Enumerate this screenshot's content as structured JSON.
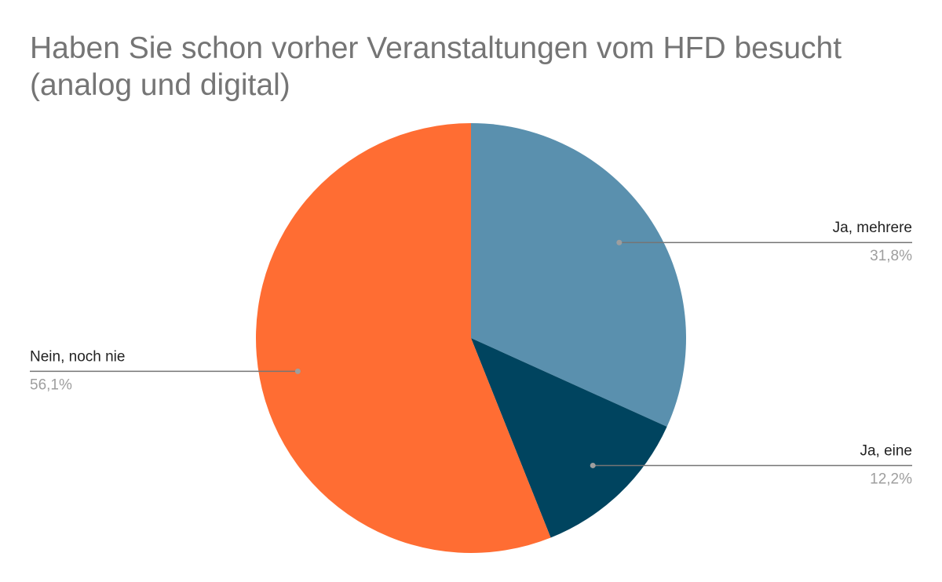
{
  "chart_data": {
    "type": "pie",
    "title": "Haben Sie schon vorher Veranstaltungen vom HFD besucht (analog und digital)",
    "categories": [
      "Ja, mehrere",
      "Ja, eine",
      "Nein, noch nie"
    ],
    "values": [
      31.8,
      12.2,
      56.1
    ],
    "value_labels": [
      "31,8%",
      "12,2%",
      "56,1%"
    ],
    "colors": [
      "#5a90ae",
      "#00445f",
      "#ff6d33"
    ]
  }
}
